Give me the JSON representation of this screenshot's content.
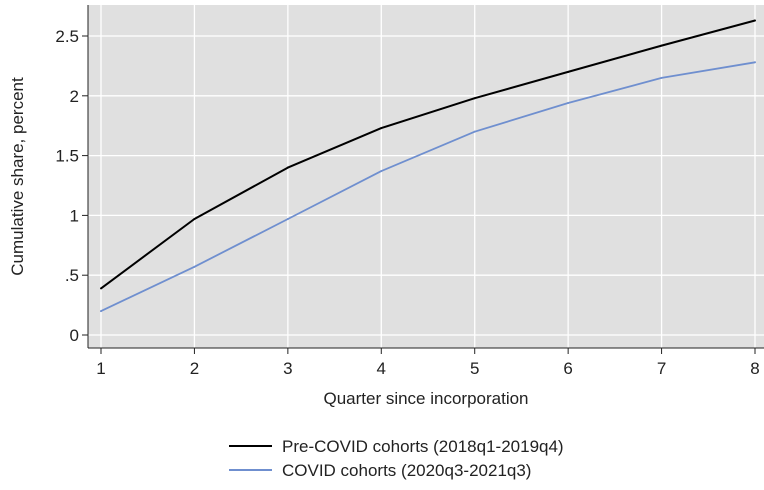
{
  "chart_data": {
    "type": "line",
    "title": "",
    "xlabel": "Quarter since incorporation",
    "ylabel": "Cumulative share, percent",
    "x": [
      1,
      2,
      3,
      4,
      5,
      6,
      7,
      8
    ],
    "xticks": [
      1,
      2,
      3,
      4,
      5,
      6,
      7,
      8
    ],
    "xlim": [
      1,
      8
    ],
    "ylim": [
      0,
      2.5
    ],
    "yticks": [
      0,
      0.5,
      1,
      1.5,
      2,
      2.5
    ],
    "ytick_labels": [
      "0",
      ".5",
      "1",
      "1.5",
      "2",
      "2.5"
    ],
    "grid": true,
    "background": "#e0e0e0",
    "legend_position": "bottom-center",
    "series": [
      {
        "name": "Pre-COVID cohorts (2018q1-2019q4)",
        "color": "#000000",
        "values": [
          0.39,
          0.97,
          1.4,
          1.73,
          1.98,
          2.2,
          2.42,
          2.63
        ]
      },
      {
        "name": "COVID cohorts (2020q3-2021q3)",
        "color": "#6f8fcf",
        "values": [
          0.2,
          0.57,
          0.97,
          1.37,
          1.7,
          1.94,
          2.15,
          2.28
        ]
      }
    ]
  }
}
